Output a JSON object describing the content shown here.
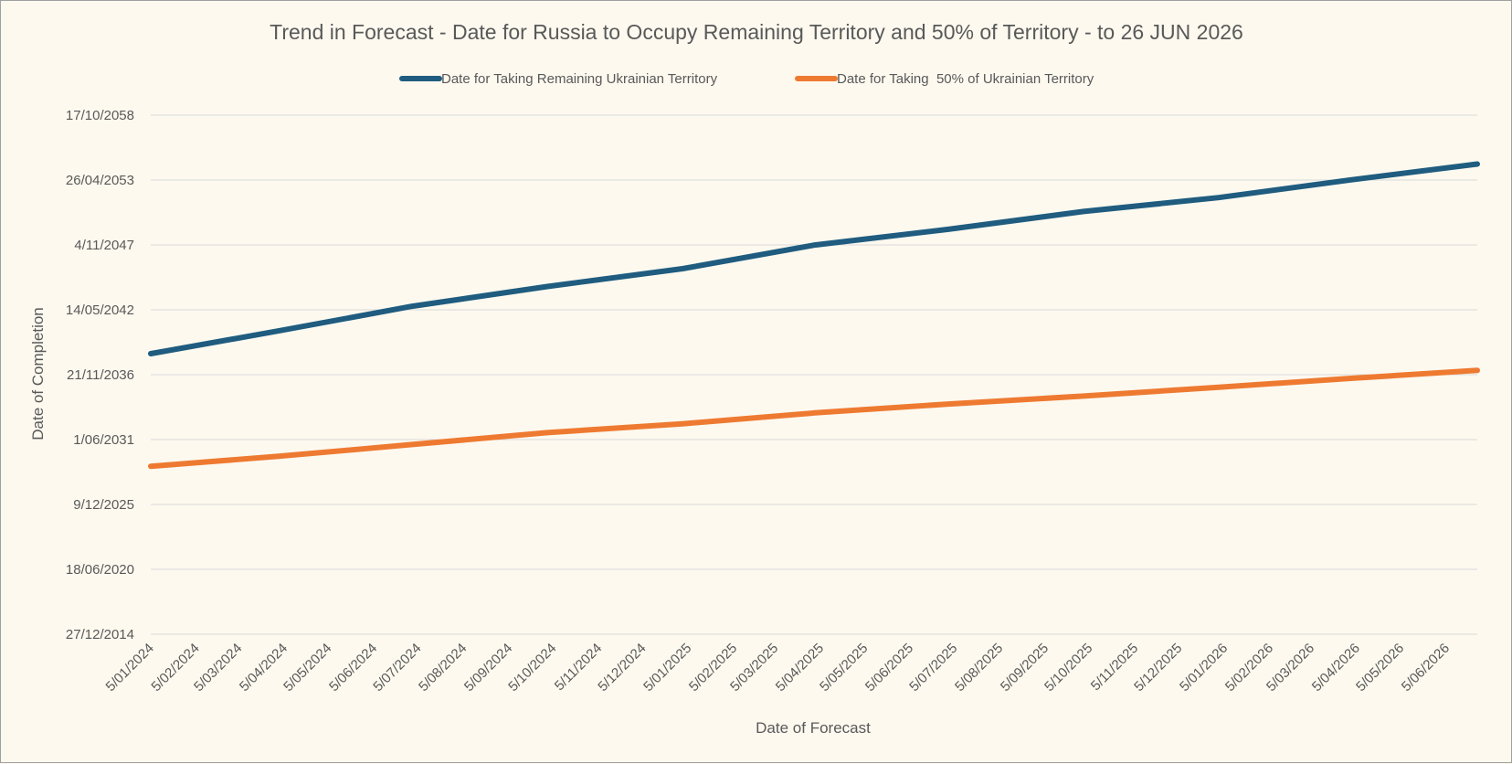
{
  "chart_data": {
    "type": "line",
    "title": "Trend in Forecast - Date for Russia to Occupy Remaining Territory and 50% of Territory - to 26 JUN 2026",
    "xlabel": "Date of Forecast",
    "ylabel": "Date of Completion",
    "x_range": [
      "2024-01-05",
      "2026-06-26"
    ],
    "y_range": [
      "2014-12-27",
      "2058-10-17"
    ],
    "x_ticks": [
      "5/01/2024",
      "5/02/2024",
      "5/03/2024",
      "5/04/2024",
      "5/05/2024",
      "5/06/2024",
      "5/07/2024",
      "5/08/2024",
      "5/09/2024",
      "5/10/2024",
      "5/11/2024",
      "5/12/2024",
      "5/01/2025",
      "5/02/2025",
      "5/03/2025",
      "5/04/2025",
      "5/05/2025",
      "5/06/2025",
      "5/07/2025",
      "5/08/2025",
      "5/09/2025",
      "5/10/2025",
      "5/11/2025",
      "5/12/2025",
      "5/01/2026",
      "5/02/2026",
      "5/03/2026",
      "5/04/2026",
      "5/05/2026",
      "5/06/2026"
    ],
    "y_ticks": [
      "27/12/2014",
      "18/06/2020",
      "9/12/2025",
      "1/06/2031",
      "21/11/2036",
      "14/05/2042",
      "4/11/2047",
      "26/04/2053",
      "17/10/2058"
    ],
    "grid": true,
    "legend_position": "top",
    "series": [
      {
        "name": "Date for Taking Remaining Ukrainian Territory",
        "color": "#1f5c7f",
        "points": [
          [
            "2024-01-05",
            "2038-09-01"
          ],
          [
            "2024-04-01",
            "2040-08-01"
          ],
          [
            "2024-07-01",
            "2042-09-01"
          ],
          [
            "2024-10-01",
            "2044-05-01"
          ],
          [
            "2025-01-01",
            "2045-11-01"
          ],
          [
            "2025-04-01",
            "2047-11-01"
          ],
          [
            "2025-07-01",
            "2049-03-01"
          ],
          [
            "2025-10-01",
            "2050-09-01"
          ],
          [
            "2026-01-01",
            "2051-11-01"
          ],
          [
            "2026-04-01",
            "2053-05-01"
          ],
          [
            "2026-06-26",
            "2054-09-01"
          ]
        ]
      },
      {
        "name": "Date for Taking  50% of Ukrainian Territory",
        "color": "#ee7a31",
        "points": [
          [
            "2024-01-05",
            "2029-03-01"
          ],
          [
            "2024-04-01",
            "2030-01-01"
          ],
          [
            "2024-07-01",
            "2031-01-01"
          ],
          [
            "2024-10-01",
            "2032-01-01"
          ],
          [
            "2025-01-01",
            "2032-10-01"
          ],
          [
            "2025-04-01",
            "2033-09-01"
          ],
          [
            "2025-07-01",
            "2034-06-01"
          ],
          [
            "2025-10-01",
            "2035-02-01"
          ],
          [
            "2026-01-01",
            "2035-11-01"
          ],
          [
            "2026-04-01",
            "2036-08-01"
          ],
          [
            "2026-06-26",
            "2037-04-01"
          ]
        ]
      }
    ]
  }
}
